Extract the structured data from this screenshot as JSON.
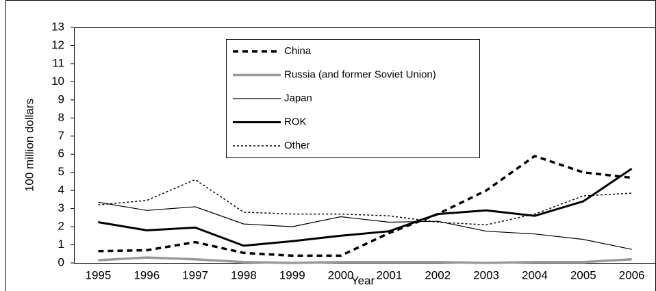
{
  "chart_data": {
    "type": "line",
    "y_label": "100 million dollars",
    "x_label": "Year",
    "categories": [
      "1995",
      "1996",
      "1997",
      "1998",
      "1999",
      "2000",
      "2001",
      "2002",
      "2003",
      "2004",
      "2005",
      "2006"
    ],
    "ylim": [
      0,
      13
    ],
    "yticks": [
      0,
      1,
      2,
      3,
      4,
      5,
      6,
      7,
      8,
      9,
      10,
      11,
      12,
      13
    ],
    "series": [
      {
        "name": "China",
        "color": "#000000",
        "width": 3.5,
        "dash": "8 6",
        "values": [
          0.65,
          0.7,
          1.15,
          0.55,
          0.4,
          0.4,
          1.65,
          2.7,
          4.0,
          5.9,
          5.0,
          4.7
        ]
      },
      {
        "name": "Russia (and former Soviet Union)",
        "color": "#999999",
        "width": 3.5,
        "dash": "none",
        "values": [
          0.15,
          0.3,
          0.2,
          0.05,
          0.0,
          0.05,
          0.05,
          0.05,
          0.0,
          0.05,
          0.05,
          0.2
        ]
      },
      {
        "name": "Japan",
        "color": "#000000",
        "width": 1.2,
        "dash": "none",
        "values": [
          3.35,
          2.9,
          3.1,
          2.15,
          2.0,
          2.55,
          2.25,
          2.3,
          1.75,
          1.6,
          1.3,
          0.75
        ]
      },
      {
        "name": "ROK",
        "color": "#000000",
        "width": 3,
        "dash": "none",
        "values": [
          2.25,
          1.8,
          1.95,
          0.95,
          1.2,
          1.5,
          1.75,
          2.7,
          2.9,
          2.6,
          3.4,
          5.2
        ]
      },
      {
        "name": "Other",
        "color": "#000000",
        "width": 1.5,
        "dash": "3 3",
        "values": [
          3.2,
          3.45,
          4.6,
          2.8,
          2.7,
          2.7,
          2.6,
          2.25,
          2.1,
          2.7,
          3.7,
          3.85
        ]
      }
    ]
  }
}
